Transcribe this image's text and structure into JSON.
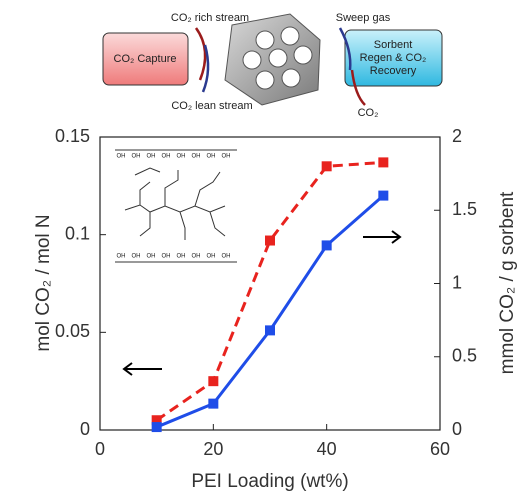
{
  "diagram": {
    "left_box": "CO₂ Capture",
    "right_box_lines": [
      "Sorbent",
      "Regen & CO₂",
      "Recovery"
    ],
    "rich_stream": "CO₂ rich stream",
    "lean_stream": "CO₂ lean stream",
    "sweep_gas": "Sweep gas",
    "product": "CO₂",
    "inset_group": "OH"
  },
  "chart_data": {
    "type": "line",
    "xlabel": "PEI Loading (wt%)",
    "ylabel": "mol CO₂ / mol N",
    "y2label": "mmol CO₂ / g sorbent",
    "x": [
      10,
      20,
      30,
      40,
      50
    ],
    "series": [
      {
        "color": "#e8231e",
        "line_style": "dashed",
        "marker": "square",
        "values": [
          0.005,
          0.025,
          0.097,
          0.135,
          0.137
        ]
      },
      {
        "color": "#1f4de8",
        "line_style": "solid",
        "marker": "square",
        "axis": "y2",
        "values": [
          0.02,
          0.18,
          0.68,
          1.26,
          1.6
        ]
      }
    ],
    "xlim": [
      0,
      60
    ],
    "xticks": [
      0,
      20,
      40,
      60
    ],
    "ylim": [
      0,
      0.15
    ],
    "yticks": [
      0,
      0.05,
      0.1,
      0.15
    ],
    "y2lim": [
      0,
      2
    ],
    "y2ticks": [
      0,
      0.5,
      1,
      1.5,
      2
    ]
  }
}
